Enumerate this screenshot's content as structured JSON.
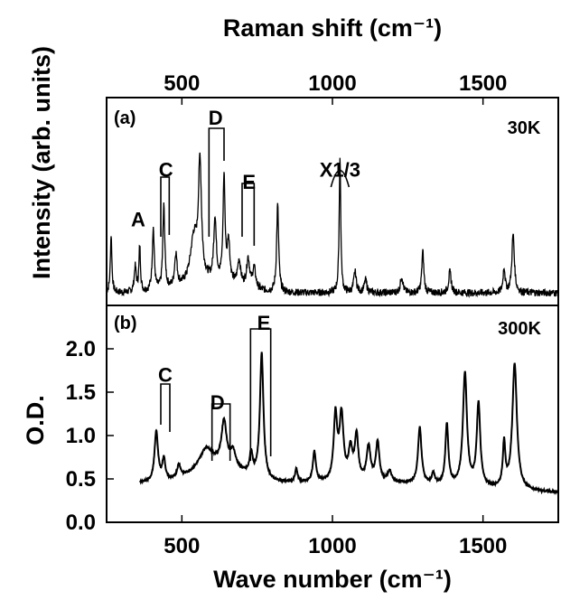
{
  "chart_data": [
    {
      "type": "line",
      "panel_label": "(a)",
      "temperature_label": "30K",
      "title": "",
      "xlabel_top": "Raman shift (cm⁻¹)",
      "ylabel": "Intensity (arb. units)",
      "xlim": [
        250,
        1750
      ],
      "ylim": [
        0,
        1
      ],
      "x_ticks": [
        500,
        1000,
        1500
      ],
      "x_tick_labels": [
        "500",
        "1000",
        "1500"
      ],
      "peaks": [
        {
          "x": 265,
          "h": 0.28,
          "w": 3
        },
        {
          "x": 345,
          "h": 0.12,
          "w": 4
        },
        {
          "x": 360,
          "h": 0.22,
          "w": 3
        },
        {
          "x": 405,
          "h": 0.3,
          "w": 4
        },
        {
          "x": 440,
          "h": 0.4,
          "w": 4
        },
        {
          "x": 480,
          "h": 0.16,
          "w": 5
        },
        {
          "x": 540,
          "h": 0.22,
          "w": 14
        },
        {
          "x": 560,
          "h": 0.55,
          "w": 6
        },
        {
          "x": 610,
          "h": 0.3,
          "w": 5
        },
        {
          "x": 640,
          "h": 0.5,
          "w": 4
        },
        {
          "x": 655,
          "h": 0.2,
          "w": 5
        },
        {
          "x": 690,
          "h": 0.12,
          "w": 6
        },
        {
          "x": 720,
          "h": 0.14,
          "w": 6
        },
        {
          "x": 740,
          "h": 0.1,
          "w": 6
        },
        {
          "x": 818,
          "h": 0.42,
          "w": 4
        },
        {
          "x": 1025,
          "h": 0.66,
          "w": 3
        },
        {
          "x": 1075,
          "h": 0.1,
          "w": 5
        },
        {
          "x": 1110,
          "h": 0.06,
          "w": 5
        },
        {
          "x": 1230,
          "h": 0.08,
          "w": 5
        },
        {
          "x": 1300,
          "h": 0.2,
          "w": 4
        },
        {
          "x": 1390,
          "h": 0.1,
          "w": 5
        },
        {
          "x": 1570,
          "h": 0.12,
          "w": 4
        },
        {
          "x": 1600,
          "h": 0.28,
          "w": 5
        }
      ],
      "annotations": [
        {
          "label": "A",
          "x": 355,
          "y": 0.38
        },
        {
          "label": "C",
          "x": 447,
          "y": 0.62
        },
        {
          "label": "D",
          "x": 612,
          "y": 0.87
        },
        {
          "label": "E",
          "x": 723,
          "y": 0.56
        },
        {
          "label": "X1/3",
          "x": 1025,
          "y": 0.62
        }
      ]
    },
    {
      "type": "line",
      "panel_label": "(b)",
      "temperature_label": "300K",
      "xlabel": "Wave number (cm⁻¹)",
      "ylabel": "O.D.",
      "xlim": [
        250,
        1750
      ],
      "ylim": [
        0,
        2.5
      ],
      "x_ticks": [
        500,
        1000,
        1500
      ],
      "x_tick_labels": [
        "500",
        "1000",
        "1500"
      ],
      "y_ticks": [
        0.0,
        0.5,
        1.0,
        1.5,
        2.0
      ],
      "y_tick_labels": [
        "0.0",
        "0.5",
        "1.0",
        "1.5",
        "2.0"
      ],
      "range_start": 360,
      "peaks": [
        {
          "x": 415,
          "h": 0.58,
          "w": 7
        },
        {
          "x": 440,
          "h": 0.25,
          "w": 6
        },
        {
          "x": 490,
          "h": 0.15,
          "w": 7
        },
        {
          "x": 580,
          "h": 0.22,
          "w": 25
        },
        {
          "x": 640,
          "h": 0.5,
          "w": 10
        },
        {
          "x": 670,
          "h": 0.18,
          "w": 10
        },
        {
          "x": 730,
          "h": 0.25,
          "w": 6
        },
        {
          "x": 765,
          "h": 1.45,
          "w": 7
        },
        {
          "x": 880,
          "h": 0.15,
          "w": 5
        },
        {
          "x": 940,
          "h": 0.35,
          "w": 6
        },
        {
          "x": 1010,
          "h": 0.75,
          "w": 7
        },
        {
          "x": 1030,
          "h": 0.75,
          "w": 8
        },
        {
          "x": 1060,
          "h": 0.35,
          "w": 8
        },
        {
          "x": 1080,
          "h": 0.52,
          "w": 7
        },
        {
          "x": 1120,
          "h": 0.4,
          "w": 8
        },
        {
          "x": 1150,
          "h": 0.45,
          "w": 7
        },
        {
          "x": 1190,
          "h": 0.12,
          "w": 8
        },
        {
          "x": 1290,
          "h": 0.65,
          "w": 7
        },
        {
          "x": 1335,
          "h": 0.12,
          "w": 6
        },
        {
          "x": 1380,
          "h": 0.7,
          "w": 6
        },
        {
          "x": 1440,
          "h": 1.3,
          "w": 8
        },
        {
          "x": 1485,
          "h": 0.95,
          "w": 7
        },
        {
          "x": 1570,
          "h": 0.5,
          "w": 5
        },
        {
          "x": 1605,
          "h": 1.45,
          "w": 9
        }
      ],
      "annotations": [
        {
          "label": "C",
          "x": 445,
          "y": 1.62
        },
        {
          "label": "D",
          "x": 618,
          "y": 1.3
        },
        {
          "label": "E",
          "x": 772,
          "y": 2.22
        }
      ]
    }
  ]
}
